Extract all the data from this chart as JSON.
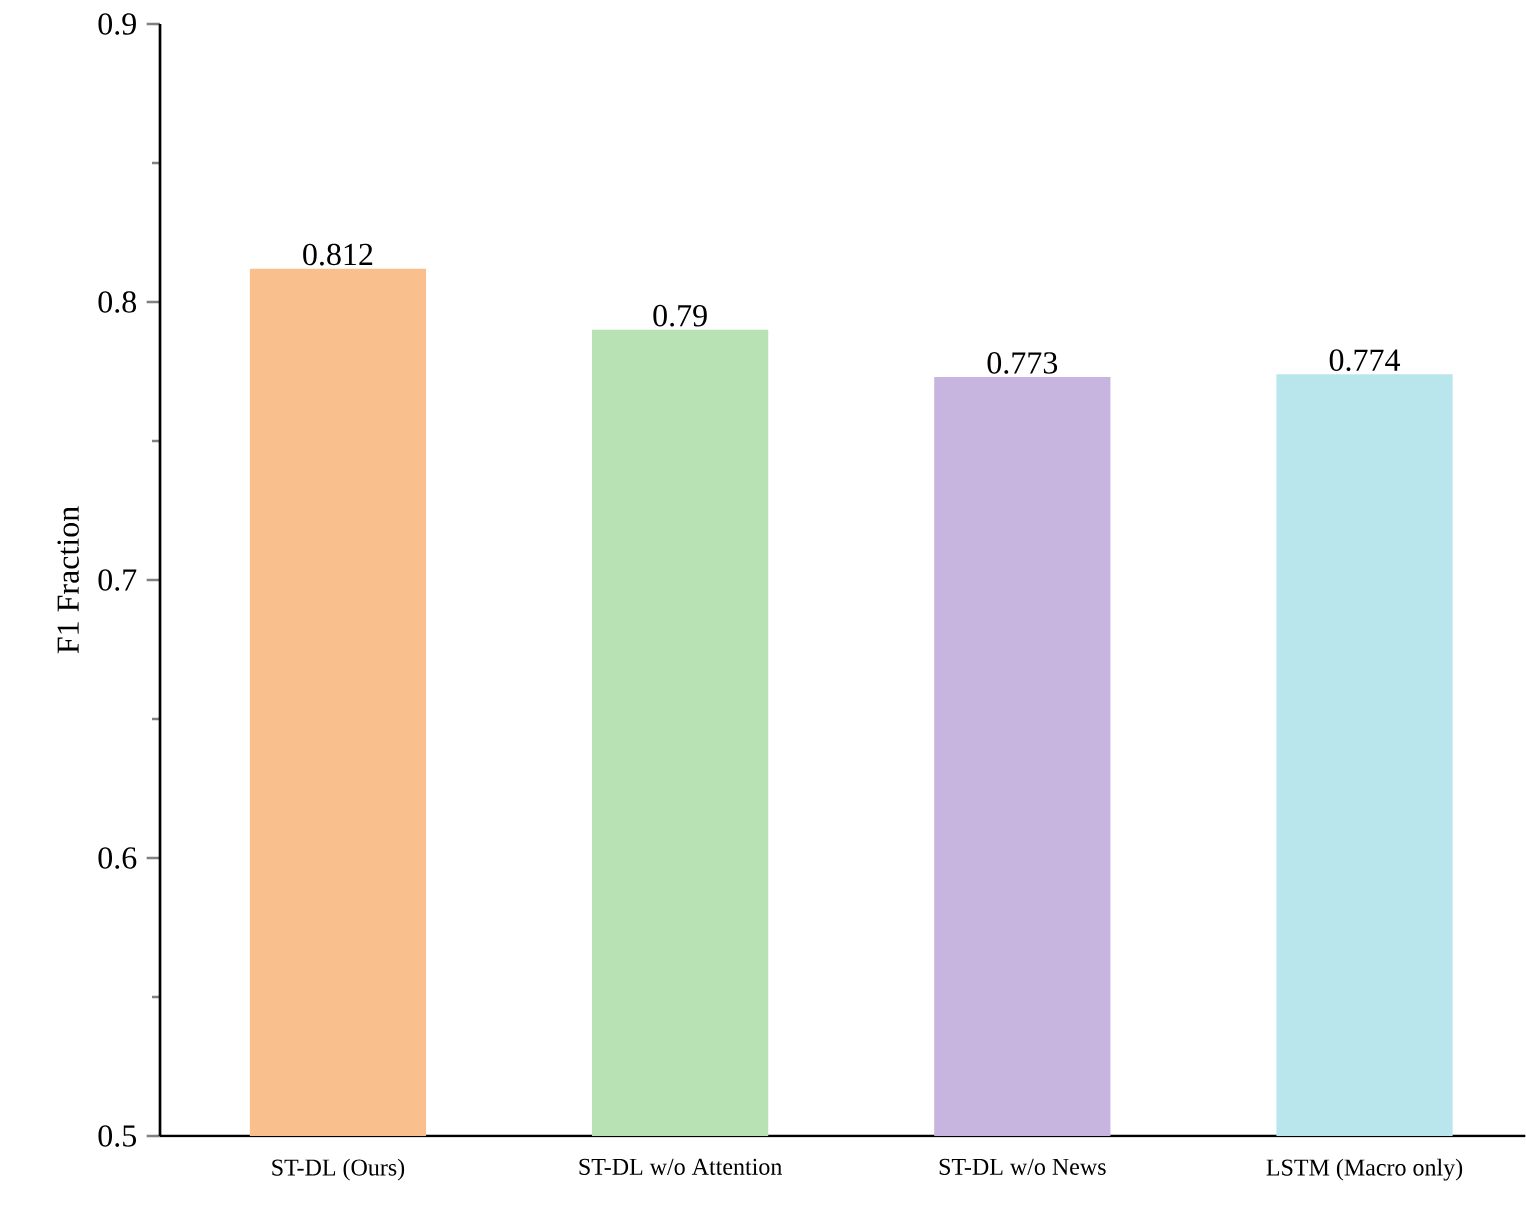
{
  "chart_data": {
    "type": "bar",
    "ylabel": "F1 Fraction",
    "categories": [
      "ST-DL (Ours)",
      "ST-DL w/o Attention",
      "ST-DL w/o News",
      "LSTM (Macro only)"
    ],
    "values": [
      0.812,
      0.79,
      0.773,
      0.774
    ],
    "colors": [
      "#f9c08e",
      "#b8e2b3",
      "#c7b5df",
      "#b8e6ec"
    ],
    "ylim": [
      0.5,
      0.9
    ],
    "yticks": [
      0.5,
      0.6,
      0.7,
      0.8,
      0.9
    ],
    "grid": false,
    "data_labels": true
  }
}
